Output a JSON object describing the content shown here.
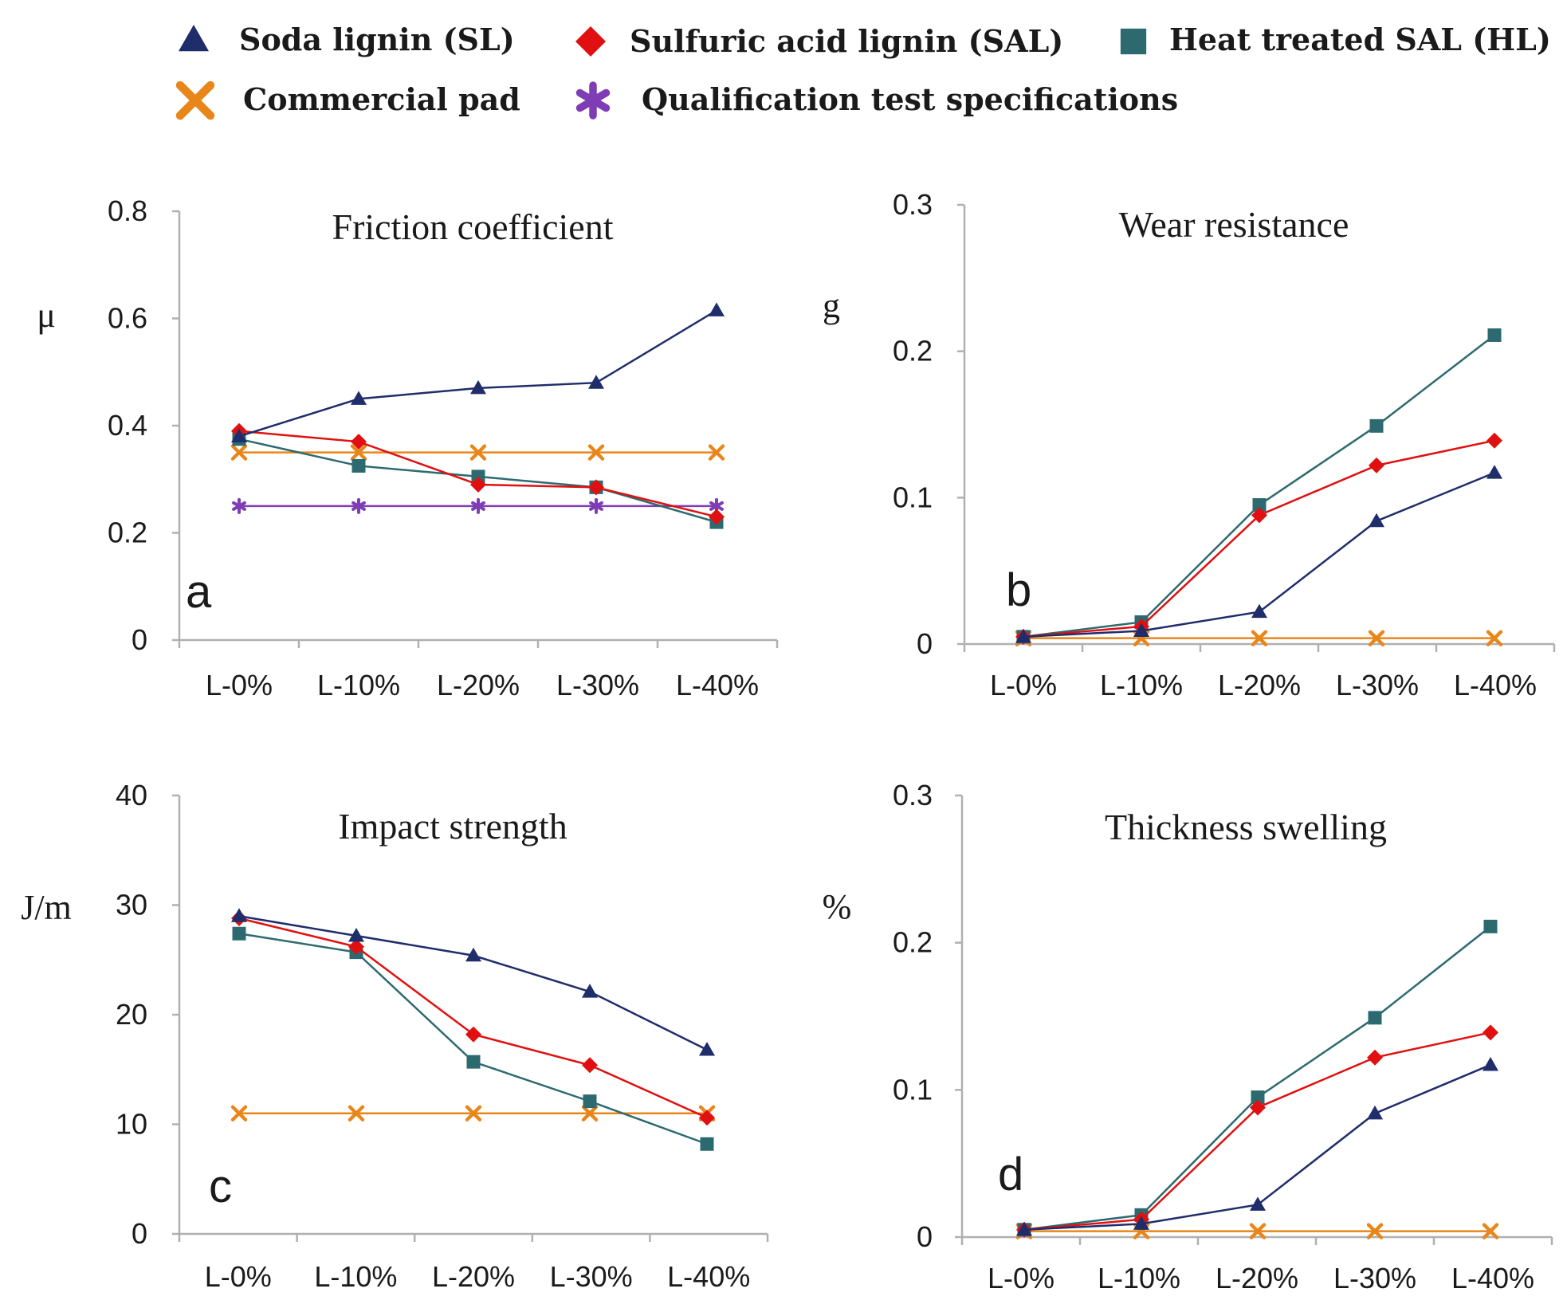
{
  "colors": {
    "sl": "#1f2d6b",
    "sal": "#e01010",
    "hl": "#2d6a70",
    "commercial": "#e8861a",
    "qualification": "#7e3db5",
    "axis": "#b0b0b0"
  },
  "legend": {
    "items": [
      {
        "key": "sl",
        "label": "Soda lignin  (SL)",
        "marker": "triangle"
      },
      {
        "key": "sal",
        "label": "Sulfuric acid lignin  (SAL)",
        "marker": "diamond"
      },
      {
        "key": "hl",
        "label": "Heat treated SAL (HL)",
        "marker": "square"
      },
      {
        "key": "commercial",
        "label": "Commercial pad",
        "marker": "x"
      },
      {
        "key": "qualification",
        "label": "Qualification  test specifications",
        "marker": "star"
      }
    ]
  },
  "chart_data": [
    {
      "type": "line",
      "panel": "a",
      "title": "Friction coefficient",
      "ylabel": "μ",
      "categories": [
        "L-0%",
        "L-10%",
        "L-20%",
        "L-30%",
        "L-40%"
      ],
      "ylim": [
        0,
        0.8
      ],
      "yticks": [
        0,
        0.2,
        0.4,
        0.6,
        0.8
      ],
      "ytick_labels": [
        "0",
        "0.2",
        "0.4",
        "0.6",
        "0.8"
      ],
      "series": [
        {
          "key": "sl",
          "name": "Soda lignin (SL)",
          "values": [
            0.38,
            0.45,
            0.47,
            0.48,
            0.615
          ]
        },
        {
          "key": "sal",
          "name": "Sulfuric acid lignin (SAL)",
          "values": [
            0.39,
            0.37,
            0.29,
            0.285,
            0.23
          ]
        },
        {
          "key": "hl",
          "name": "Heat treated SAL (HL)",
          "values": [
            0.375,
            0.325,
            0.305,
            0.285,
            0.22
          ]
        },
        {
          "key": "commercial",
          "name": "Commercial pad",
          "values": [
            0.35,
            0.35,
            0.35,
            0.35,
            0.35
          ]
        },
        {
          "key": "qualification",
          "name": "Qualification test specifications",
          "values": [
            0.25,
            0.25,
            0.25,
            0.25,
            0.25
          ]
        }
      ]
    },
    {
      "type": "line",
      "panel": "b",
      "title": "Wear resistance",
      "ylabel": "g",
      "categories": [
        "L-0%",
        "L-10%",
        "L-20%",
        "L-30%",
        "L-40%"
      ],
      "ylim": [
        0,
        0.3
      ],
      "yticks": [
        0,
        0.1,
        0.2,
        0.3
      ],
      "ytick_labels": [
        "0",
        "0.1",
        "0.2",
        "0.3"
      ],
      "series": [
        {
          "key": "sl",
          "name": "Soda lignin (SL)",
          "values": [
            0.005,
            0.009,
            0.022,
            0.084,
            0.117
          ]
        },
        {
          "key": "sal",
          "name": "Sulfuric acid lignin (SAL)",
          "values": [
            0.005,
            0.012,
            0.088,
            0.122,
            0.139
          ]
        },
        {
          "key": "hl",
          "name": "Heat treated SAL (HL)",
          "values": [
            0.005,
            0.015,
            0.095,
            0.149,
            0.211
          ]
        },
        {
          "key": "commercial",
          "name": "Commercial pad",
          "values": [
            0.004,
            0.004,
            0.004,
            0.004,
            0.004
          ]
        }
      ]
    },
    {
      "type": "line",
      "panel": "c",
      "title": "Impact strength",
      "ylabel": "J/m",
      "categories": [
        "L-0%",
        "L-10%",
        "L-20%",
        "L-30%",
        "L-40%"
      ],
      "ylim": [
        0,
        40
      ],
      "yticks": [
        0,
        10,
        20,
        30,
        40
      ],
      "ytick_labels": [
        "0",
        "10",
        "20",
        "30",
        "40"
      ],
      "series": [
        {
          "key": "sl",
          "name": "Soda lignin (SL)",
          "values": [
            29,
            27.2,
            25.4,
            22.1,
            16.8
          ]
        },
        {
          "key": "sal",
          "name": "Sulfuric acid lignin (SAL)",
          "values": [
            28.8,
            26.2,
            18.2,
            15.4,
            10.6
          ]
        },
        {
          "key": "hl",
          "name": "Heat treated SAL (HL)",
          "values": [
            27.4,
            25.7,
            15.7,
            12.1,
            8.2
          ]
        },
        {
          "key": "commercial",
          "name": "Commercial pad",
          "values": [
            11,
            11,
            11,
            11,
            11
          ]
        }
      ]
    },
    {
      "type": "line",
      "panel": "d",
      "title": "Thickness swelling",
      "ylabel": "%",
      "categories": [
        "L-0%",
        "L-10%",
        "L-20%",
        "L-30%",
        "L-40%"
      ],
      "ylim": [
        0,
        0.3
      ],
      "yticks": [
        0,
        0.1,
        0.2,
        0.3
      ],
      "ytick_labels": [
        "0",
        "0.1",
        "0.2",
        "0.3"
      ],
      "series": [
        {
          "key": "sl",
          "name": "Soda lignin (SL)",
          "values": [
            0.005,
            0.009,
            0.022,
            0.084,
            0.117
          ]
        },
        {
          "key": "sal",
          "name": "Sulfuric acid lignin (SAL)",
          "values": [
            0.005,
            0.012,
            0.088,
            0.122,
            0.139
          ]
        },
        {
          "key": "hl",
          "name": "Heat treated SAL (HL)",
          "values": [
            0.005,
            0.015,
            0.095,
            0.149,
            0.211
          ]
        },
        {
          "key": "commercial",
          "name": "Commercial pad",
          "values": [
            0.004,
            0.004,
            0.004,
            0.004,
            0.004
          ]
        }
      ]
    }
  ]
}
